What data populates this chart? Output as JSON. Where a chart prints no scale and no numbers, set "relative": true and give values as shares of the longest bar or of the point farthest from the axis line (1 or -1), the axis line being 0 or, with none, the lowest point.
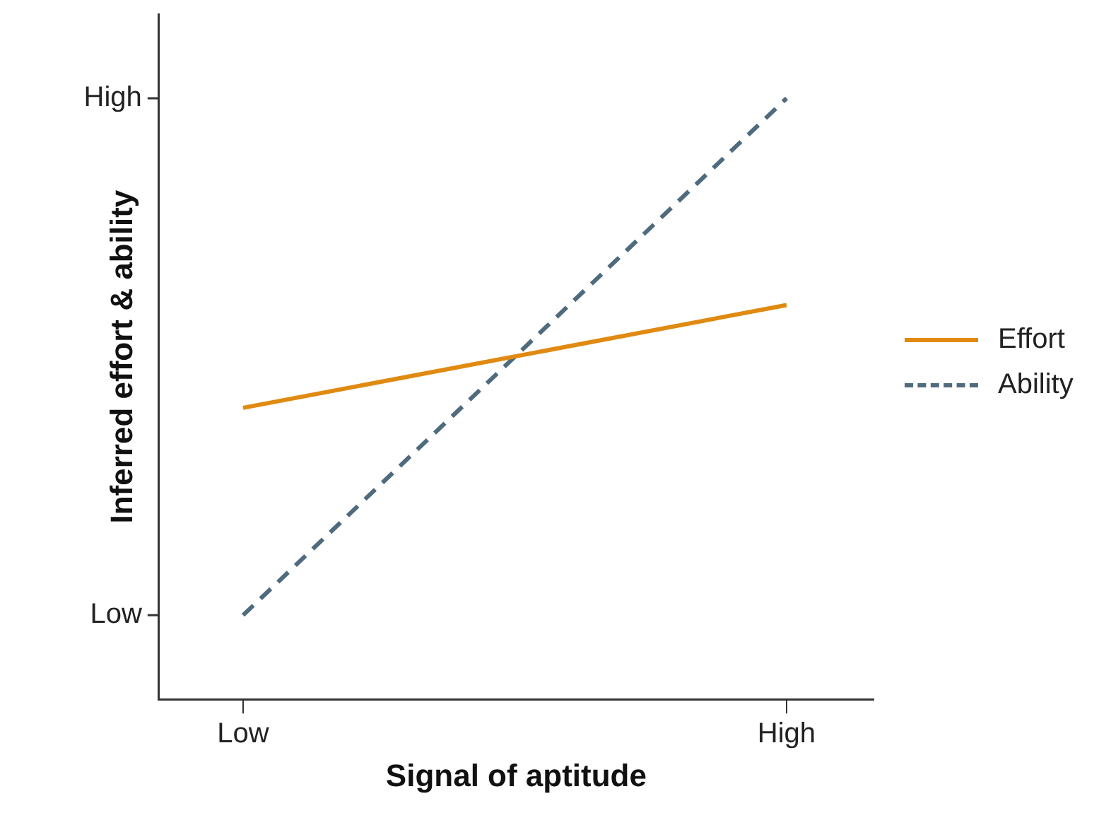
{
  "chart_data": {
    "type": "line",
    "xlabel": "Signal of aptitude",
    "ylabel": "Inferred effort & ability",
    "categories": [
      "Low",
      "High"
    ],
    "relative": true,
    "annotations": [
      "Low",
      "High"
    ],
    "series": [
      {
        "name": "Effort",
        "color": "#e08a12",
        "values": [
          0.485,
          0.656
        ],
        "line_style": "solid"
      },
      {
        "name": "Ability",
        "color": "#4f6b7d",
        "values": [
          0.14,
          1
        ],
        "line_style": "dashed"
      }
    ],
    "grid": false,
    "legend": "right",
    "marker": "none"
  }
}
